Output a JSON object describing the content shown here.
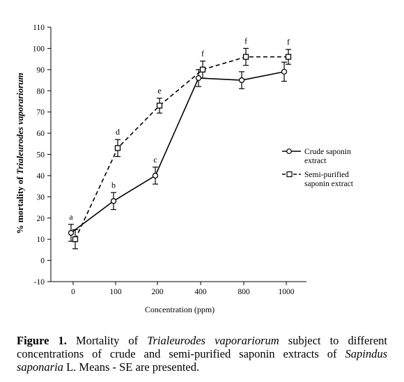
{
  "chart_data": {
    "type": "line",
    "categories": [
      "0",
      "100",
      "200",
      "400",
      "800",
      "1000"
    ],
    "xlabel": "Concentration (ppm)",
    "ylabel": "% mortality of Trialeurodes vaporariorum",
    "ylim": [
      -10,
      110
    ],
    "yticks": [
      -10,
      0,
      10,
      20,
      30,
      40,
      50,
      60,
      70,
      80,
      90,
      100,
      110
    ],
    "grid": false,
    "legend_position": "right",
    "series": [
      {
        "name": "Crude saponin extract",
        "legend_lines": [
          "Crude saponin",
          "extract"
        ],
        "marker": "circle",
        "line_style": "solid",
        "values": [
          13,
          28,
          40,
          86,
          85,
          89
        ],
        "error": [
          4,
          4,
          4,
          4,
          4,
          4.5
        ],
        "letters": [
          "a",
          "b",
          "c",
          "",
          "",
          ""
        ]
      },
      {
        "name": "Semi-purified saponin extract",
        "legend_lines": [
          "Semi-purified",
          "saponin extract"
        ],
        "marker": "square",
        "line_style": "dashed",
        "values": [
          10,
          53,
          73,
          90,
          96,
          96
        ],
        "error": [
          4.5,
          4,
          3.5,
          4,
          4,
          3.5
        ],
        "letters": [
          "",
          "d",
          "e",
          "f",
          "f",
          "f"
        ]
      }
    ]
  },
  "caption": {
    "label": "Figure 1.",
    "t1": " Mortality of ",
    "i1": "Trialeurodes vaporariorum",
    "t2": " subject to different concentrations of crude and semi-purified saponin extracts of ",
    "i2": "Sapindus saponaria",
    "t3": " L. Means - SE are presented."
  }
}
